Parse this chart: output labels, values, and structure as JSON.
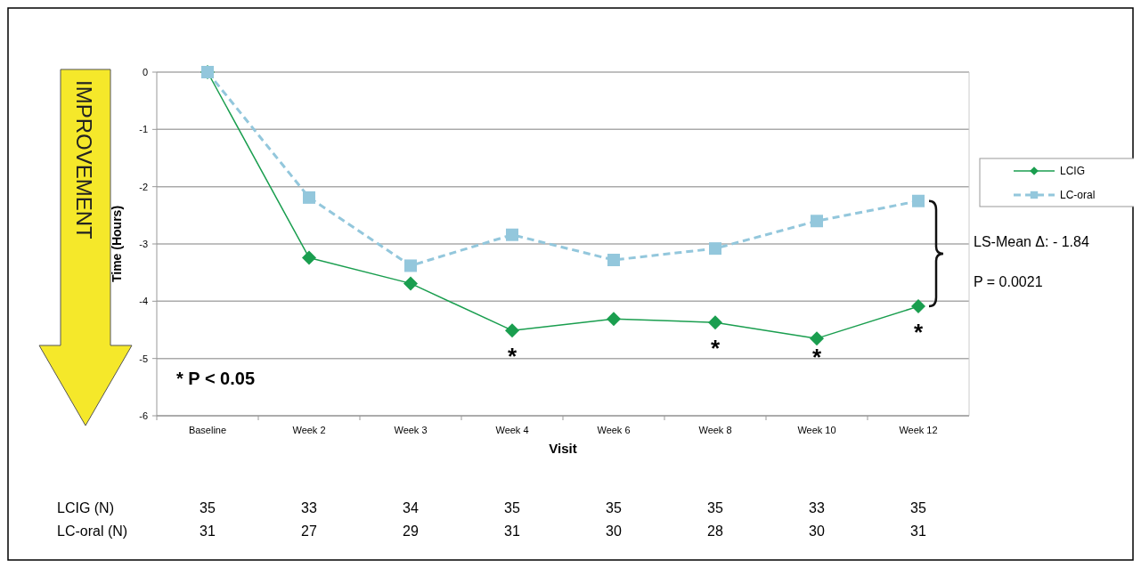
{
  "chart_data": {
    "type": "line",
    "ylabel": "Time (Hours)",
    "xlabel": "Visit",
    "categories": [
      "Baseline",
      "Week 2",
      "Week 3",
      "Week 4",
      "Week 6",
      "Week 8",
      "Week 10",
      "Week 12"
    ],
    "series": [
      {
        "name": "LCIG",
        "color": "#1a9e4f",
        "marker": "diamond",
        "line_style": "solid",
        "values": [
          0,
          -3.24,
          -3.69,
          -4.51,
          -4.31,
          -4.37,
          -4.65,
          -4.09
        ],
        "value_labels": [
          null,
          null,
          null,
          "*",
          null,
          "*",
          "*",
          "*"
        ]
      },
      {
        "name": "LC-oral",
        "color": "#93c7dc",
        "marker": "square",
        "line_style": "dashed",
        "values": [
          0,
          -2.19,
          -3.38,
          -2.84,
          -3.28,
          -3.08,
          -2.6,
          -2.25
        ]
      }
    ],
    "ylim": [
      -6,
      0
    ],
    "yticks": [
      0,
      -1,
      -2,
      -3,
      -4,
      -5,
      -6
    ],
    "grid": "y",
    "legend": "right",
    "annotations": [
      "IMPROVEMENT",
      "* P < 0.05",
      "LS-Mean Δ: - 1.84",
      "P = 0.0021",
      "LCIG (N)",
      "LC-oral (N)",
      "35",
      "33",
      "34",
      "35",
      "35",
      "35",
      "33",
      "35",
      "31",
      "27",
      "29",
      "31",
      "30",
      "28",
      "30",
      "31"
    ]
  }
}
